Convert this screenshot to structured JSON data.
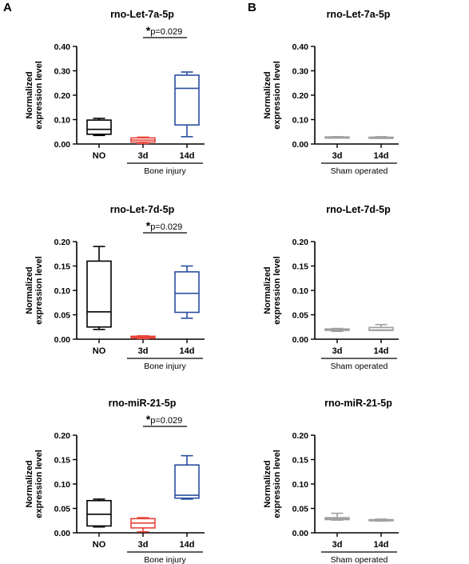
{
  "panels": [
    {
      "id": "A",
      "label": "A"
    },
    {
      "id": "B",
      "label": "B"
    }
  ],
  "chart_data": [
    {
      "type": "boxplot",
      "panel": "A",
      "row": 0,
      "title": "rno-Let-7a-5p",
      "ylabel": [
        "Normalized",
        "expression level"
      ],
      "ylim": [
        0,
        0.4
      ],
      "yticks": [
        "0.00",
        "0.10",
        "0.20",
        "0.30",
        "0.40"
      ],
      "categories": [
        "NO",
        "3d",
        "14d"
      ],
      "group_label": "Bone injury",
      "group_span": [
        1,
        2
      ],
      "significance": {
        "from": 1,
        "to": 2,
        "star": "*",
        "text": "p=0.029"
      },
      "boxes": [
        {
          "min": 0.035,
          "q1": 0.04,
          "median": 0.06,
          "q3": 0.098,
          "max": 0.105,
          "color": "#000000"
        },
        {
          "min": 0.002,
          "q1": 0.008,
          "median": 0.016,
          "q3": 0.025,
          "max": 0.028,
          "color": "#e8443a"
        },
        {
          "min": 0.03,
          "q1": 0.078,
          "median": 0.228,
          "q3": 0.282,
          "max": 0.295,
          "color": "#2b4ea0"
        }
      ]
    },
    {
      "type": "boxplot",
      "panel": "B",
      "row": 0,
      "title": "rno-Let-7a-5p",
      "ylabel": [
        "Normalized",
        "expression level"
      ],
      "ylim": [
        0,
        0.4
      ],
      "yticks": [
        "0.00",
        "0.10",
        "0.20",
        "0.30",
        "0.40"
      ],
      "categories": [
        "3d",
        "14d"
      ],
      "group_label": "Sham operated",
      "group_span": [
        0,
        1
      ],
      "significance": null,
      "boxes": [
        {
          "min": 0.026,
          "q1": 0.027,
          "median": 0.028,
          "q3": 0.029,
          "max": 0.03,
          "color": "#a0a0a0"
        },
        {
          "min": 0.024,
          "q1": 0.025,
          "median": 0.026,
          "q3": 0.028,
          "max": 0.03,
          "color": "#a0a0a0"
        }
      ]
    },
    {
      "type": "boxplot",
      "panel": "A",
      "row": 1,
      "title": "rno-Let-7d-5p",
      "ylabel": [
        "Normalized",
        "expression level"
      ],
      "ylim": [
        0,
        0.2
      ],
      "yticks": [
        "0.00",
        "0.05",
        "0.10",
        "0.15",
        "0.20"
      ],
      "categories": [
        "NO",
        "3d",
        "14d"
      ],
      "group_label": "Bone injury",
      "group_span": [
        1,
        2
      ],
      "significance": {
        "from": 1,
        "to": 2,
        "star": "*",
        "text": "p=0.029"
      },
      "boxes": [
        {
          "min": 0.02,
          "q1": 0.025,
          "median": 0.056,
          "q3": 0.16,
          "max": 0.19,
          "color": "#000000"
        },
        {
          "min": 0.001,
          "q1": 0.002,
          "median": 0.004,
          "q3": 0.006,
          "max": 0.007,
          "color": "#e8443a"
        },
        {
          "min": 0.043,
          "q1": 0.055,
          "median": 0.094,
          "q3": 0.138,
          "max": 0.15,
          "color": "#2b4ea0"
        }
      ]
    },
    {
      "type": "boxplot",
      "panel": "B",
      "row": 1,
      "title": "rno-Let-7d-5p",
      "ylabel": [
        "Normalized",
        "expression level"
      ],
      "ylim": [
        0,
        0.2
      ],
      "yticks": [
        "0.00",
        "0.05",
        "0.10",
        "0.15",
        "0.20"
      ],
      "categories": [
        "3d",
        "14d"
      ],
      "group_label": "Sham operated",
      "group_span": [
        0,
        1
      ],
      "significance": null,
      "boxes": [
        {
          "min": 0.016,
          "q1": 0.018,
          "median": 0.02,
          "q3": 0.021,
          "max": 0.022,
          "color": "#a0a0a0"
        },
        {
          "min": 0.018,
          "q1": 0.018,
          "median": 0.019,
          "q3": 0.024,
          "max": 0.03,
          "color": "#a0a0a0"
        }
      ]
    },
    {
      "type": "boxplot",
      "panel": "A",
      "row": 2,
      "title": "rno-miR-21-5p",
      "ylabel": [
        "Normalized",
        "expression level"
      ],
      "ylim": [
        0,
        0.2
      ],
      "yticks": [
        "0.00",
        "0.05",
        "0.10",
        "0.15",
        "0.20"
      ],
      "categories": [
        "NO",
        "3d",
        "14d"
      ],
      "group_label": "Bone injury",
      "group_span": [
        1,
        2
      ],
      "significance": {
        "from": 1,
        "to": 2,
        "star": "*",
        "text": "p=0.029"
      },
      "boxes": [
        {
          "min": 0.012,
          "q1": 0.014,
          "median": 0.038,
          "q3": 0.066,
          "max": 0.069,
          "color": "#000000"
        },
        {
          "min": 0.002,
          "q1": 0.01,
          "median": 0.02,
          "q3": 0.029,
          "max": 0.031,
          "color": "#e8443a"
        },
        {
          "min": 0.069,
          "q1": 0.071,
          "median": 0.077,
          "q3": 0.139,
          "max": 0.158,
          "color": "#2b4ea0"
        }
      ]
    },
    {
      "type": "boxplot",
      "panel": "B",
      "row": 2,
      "title": "rno-miR-21-5p",
      "ylabel": [
        "Normalized",
        "expression level"
      ],
      "ylim": [
        0,
        0.2
      ],
      "yticks": [
        "0.00",
        "0.05",
        "0.10",
        "0.15",
        "0.20"
      ],
      "categories": [
        "3d",
        "14d"
      ],
      "group_label": "Sham operated",
      "group_span": [
        0,
        1
      ],
      "significance": null,
      "boxes": [
        {
          "min": 0.026,
          "q1": 0.027,
          "median": 0.029,
          "q3": 0.031,
          "max": 0.04,
          "color": "#a0a0a0"
        },
        {
          "min": 0.024,
          "q1": 0.025,
          "median": 0.026,
          "q3": 0.027,
          "max": 0.028,
          "color": "#a0a0a0"
        }
      ]
    }
  ]
}
